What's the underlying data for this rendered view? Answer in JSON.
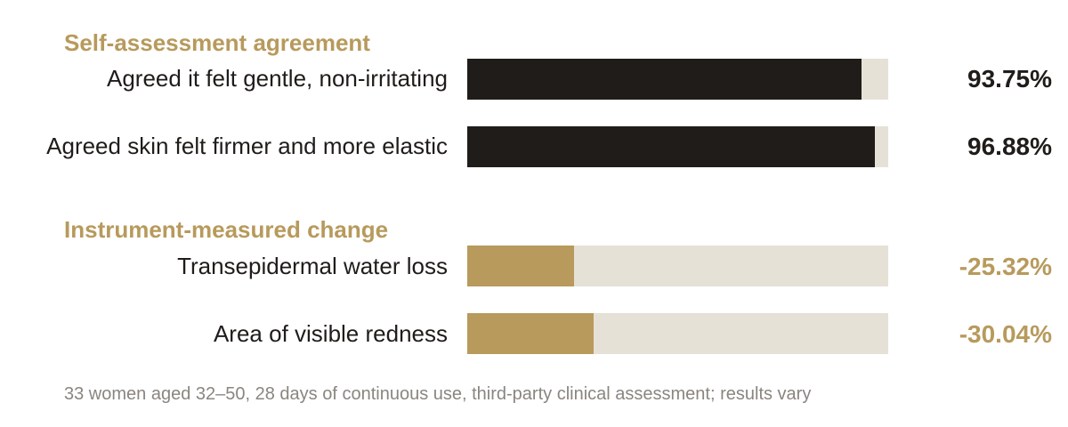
{
  "colors": {
    "accent": "#b79a5c",
    "dark": "#1f1c1a",
    "track": "#e6e1d7",
    "note": "#8a8580"
  },
  "chart_data": [
    {
      "type": "bar",
      "title": "Self-assessment agreement",
      "categories": [
        "Agreed it felt gentle, non-irritating",
        "Agreed skin felt firmer and more elastic"
      ],
      "values": [
        93.75,
        96.88
      ],
      "value_labels": [
        "93.75%",
        "96.88%"
      ],
      "unit": "%",
      "ylim": [
        0,
        100
      ],
      "bar_color": "#1f1c1a"
    },
    {
      "type": "bar",
      "title": "Instrument-measured change",
      "categories": [
        "Transepidermal water loss",
        "Area of visible redness"
      ],
      "values": [
        -25.32,
        -30.04
      ],
      "value_labels": [
        "-25.32%",
        "-30.04%"
      ],
      "unit": "%",
      "ylim": [
        0,
        100
      ],
      "bar_color": "#b79a5c"
    }
  ],
  "footnote": "33 women aged 32–50, 28 days of continuous use, third-party clinical assessment; results vary"
}
